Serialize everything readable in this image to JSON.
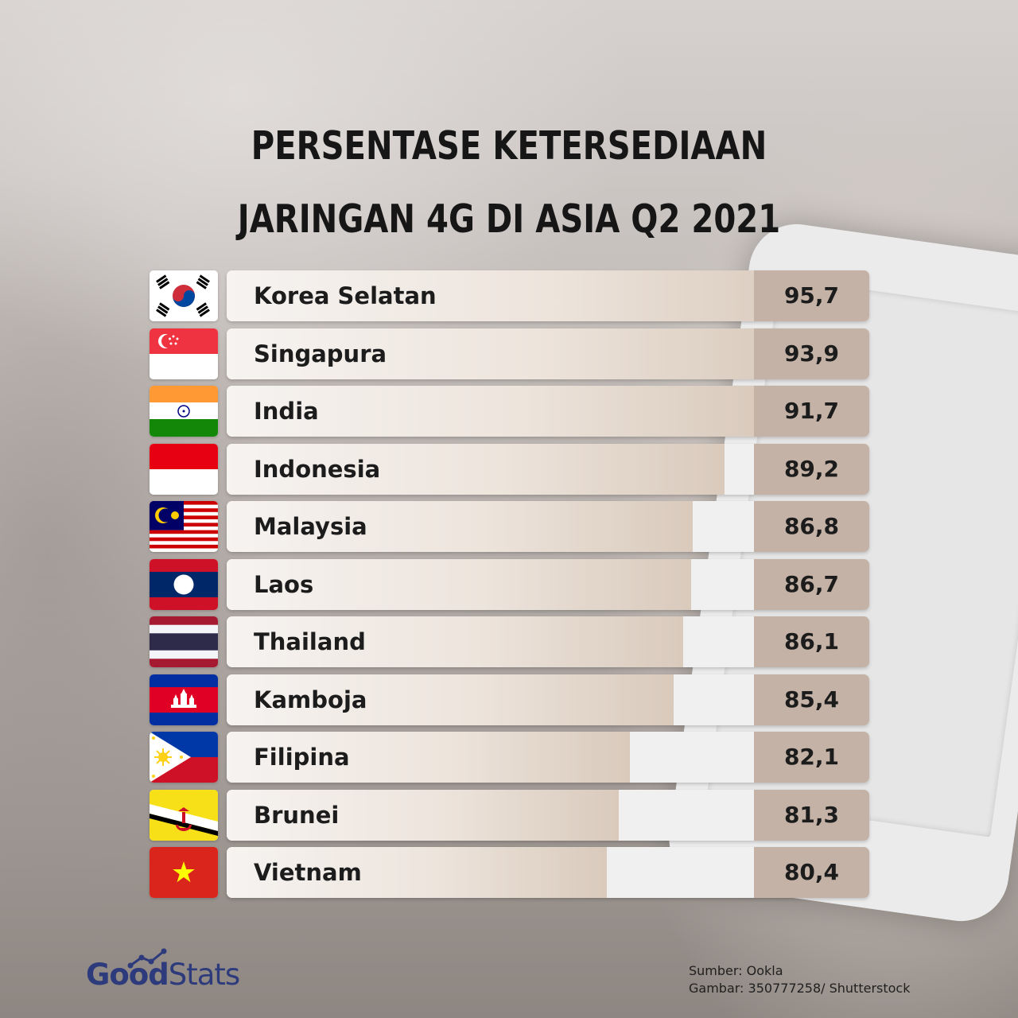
{
  "title": {
    "line1": "PERSENTASE KETERSEDIAAN",
    "line2": "JARINGAN 4G DI ASIA Q2 2021"
  },
  "chart_data": {
    "type": "bar",
    "orientation": "horizontal",
    "title": "PERSENTASE KETERSEDIAAN JARINGAN 4G DI ASIA Q2 2021",
    "categories": [
      "Korea Selatan",
      "Singapura",
      "India",
      "Indonesia",
      "Malaysia",
      "Laos",
      "Thailand",
      "Kamboja",
      "Filipina",
      "Brunei",
      "Vietnam"
    ],
    "values": [
      95.7,
      93.9,
      91.7,
      89.2,
      86.8,
      86.7,
      86.1,
      85.4,
      82.1,
      81.3,
      80.4
    ],
    "value_labels": [
      "95,7",
      "93,9",
      "91,7",
      "89,2",
      "86,8",
      "86,7",
      "86,1",
      "85,4",
      "82,1",
      "81,3",
      "80,4"
    ],
    "xlim": [
      52,
      100
    ],
    "grid": false,
    "legend": "none"
  },
  "flags": [
    "south-korea-flag-icon",
    "singapore-flag-icon",
    "india-flag-icon",
    "indonesia-flag-icon",
    "malaysia-flag-icon",
    "laos-flag-icon",
    "thailand-flag-icon",
    "cambodia-flag-icon",
    "philippines-flag-icon",
    "brunei-flag-icon",
    "vietnam-flag-icon"
  ],
  "colors": {
    "bar_fill_end": "#d9cabc",
    "value_box": "#c3b2a5",
    "logo": "#2d3a7c"
  },
  "logo": {
    "good": "Good",
    "stats": "Stats"
  },
  "source": {
    "line1": "Sumber: Ookla",
    "line2": "Gambar: 350777258/ Shutterstock"
  }
}
